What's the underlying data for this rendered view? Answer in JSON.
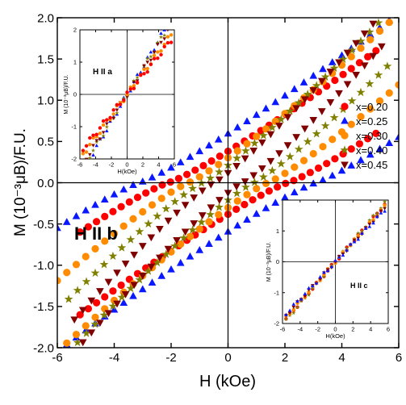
{
  "chart_data": [
    {
      "panel": "main",
      "type": "scatter",
      "xlabel": "H (kOe)",
      "ylabel": "M (10⁻³μB)/F.U.",
      "xlim": [
        -6,
        6
      ],
      "ylim": [
        -2.0,
        2.0
      ],
      "xticks": [
        "-6",
        "-4",
        "-2",
        "0",
        "2",
        "4",
        "6"
      ],
      "yticks": [
        "-2.0",
        "-1.5",
        "-1.0",
        "-0.5",
        "0.0",
        "0.5",
        "1.0",
        "1.5",
        "2.0"
      ],
      "annotation": "H II b",
      "legend_position": "right",
      "series": [
        {
          "name": "x=0.20",
          "marker": "circle",
          "color": "#ff0000",
          "coercive_field": 2.1,
          "remanence": 0.55,
          "max_field": 5.2,
          "max_moment": 1.6
        },
        {
          "name": "x=0.25",
          "marker": "triangle",
          "color": "#0a18ff",
          "coercive_field": 3.1,
          "remanence": 0.55,
          "max_field": 6.0,
          "max_moment": 2.05
        },
        {
          "name": "x=0.30",
          "marker": "circle",
          "color": "#ff8c00",
          "coercive_field": 1.4,
          "remanence": 0.35,
          "max_field": 6.0,
          "max_moment": 2.05
        },
        {
          "name": "x=0.40",
          "marker": "star",
          "color": "#808000",
          "coercive_field": 0.9,
          "remanence": 0.25,
          "max_field": 5.6,
          "max_moment": 2.05
        },
        {
          "name": "x=0.45",
          "marker": "triangle-down",
          "color": "#800000",
          "coercive_field": 0.5,
          "remanence": 0.12,
          "max_field": 5.4,
          "max_moment": 2.05
        }
      ]
    },
    {
      "panel": "inset-a",
      "type": "scatter",
      "xlabel": "H(kOe)",
      "ylabel": "M (10⁻³μB)/F.U.",
      "xlim": [
        -6,
        6
      ],
      "ylim": [
        -2,
        2
      ],
      "xticks": [
        "-6",
        "-4",
        "-2",
        "0",
        "2",
        "4",
        "6"
      ],
      "yticks": [
        "-2",
        "-1",
        "0",
        "1",
        "2"
      ],
      "annotation": "H II a"
    },
    {
      "panel": "inset-c",
      "type": "scatter",
      "xlabel": "H(kOe)",
      "ylabel": "M (10⁻³μB)/F.U.",
      "xlim": [
        -6,
        6
      ],
      "ylim": [
        -2,
        2
      ],
      "xticks": [
        "-6",
        "-4",
        "-2",
        "0",
        "2",
        "4",
        "6"
      ],
      "yticks": [
        "-2",
        "-1",
        "0",
        "1"
      ],
      "annotation": "H II c"
    }
  ]
}
